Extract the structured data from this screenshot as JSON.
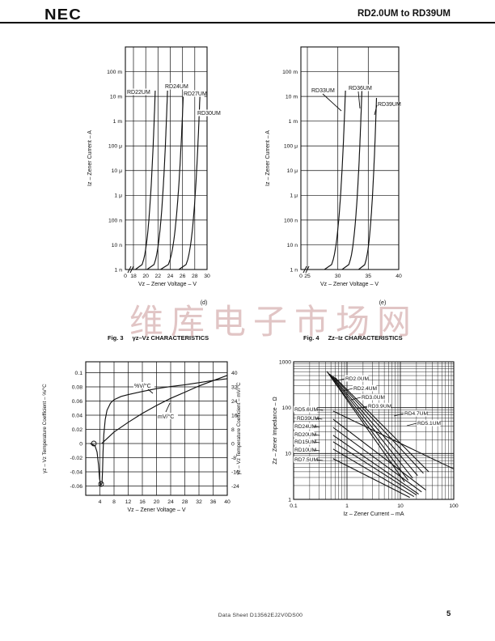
{
  "header": {
    "logo": "NEC",
    "title": "RD2.0UM to RD39UM"
  },
  "watermark": "维库电子市场网",
  "chart_data": {
    "fig_d": {
      "type": "line",
      "sublabel": "(d)",
      "xlabel": "Vz – Zener Voltage – V",
      "ylabel": "Iz – Zener Current – A",
      "xticks": [
        "0",
        "18",
        "20",
        "22",
        "24",
        "26",
        "28",
        "30"
      ],
      "yticks": [
        "100 m",
        "10 m",
        "1 m",
        "100 μ",
        "10 μ",
        "1 μ",
        "100 n",
        "10 n",
        "1 n"
      ],
      "xlim_volts": [
        18,
        30
      ],
      "ylog_range_amps": [
        "1 n",
        "1"
      ],
      "curves": [
        {
          "name": "RD22UM",
          "v_at_1nA": 18.3,
          "v_at_10mA": 21.55
        },
        {
          "name": "RD24UM",
          "v_at_1nA": 20.2,
          "v_at_10mA": 23.55
        },
        {
          "name": "RD27UM",
          "v_at_1nA": 22.4,
          "v_at_10mA": 26.15
        },
        {
          "name": "RD30UM",
          "v_at_1nA": 25.4,
          "v_at_10mA": 28.85
        }
      ]
    },
    "fig_e": {
      "type": "line",
      "sublabel": "(e)",
      "xlabel": "Vz – Zener Voltage – V",
      "ylabel": "Iz – Zener Current – A",
      "xticks": [
        "0",
        "25",
        "30",
        "35",
        "40"
      ],
      "yticks": [
        "100 m",
        "10 m",
        "1 m",
        "100 μ",
        "10 μ",
        "1 μ",
        "100 n",
        "10 n",
        "1 n"
      ],
      "xlim_volts": [
        25,
        40
      ],
      "ylog_range_amps": [
        "1 n",
        "1"
      ],
      "curves": [
        {
          "name": "RD33UM",
          "v_at_1nA": 27.8,
          "v_at_10mA": 31.25
        },
        {
          "name": "RD36UM",
          "v_at_1nA": 30.7,
          "v_at_10mA": 33.95
        },
        {
          "name": "RD39UM",
          "v_at_1nA": 33.4,
          "v_at_10mA": 36.35
        }
      ]
    },
    "fig3": {
      "caption_no": "Fig. 3",
      "caption_title": "γz–Vz CHARACTERISTICS",
      "type": "line",
      "xlabel": "Vz – Zener Voltage – V",
      "ylabel_left": "γz – Vz Temperature Coefficient – %/°C",
      "ylabel_right": "γz – Vz Temperature Coefficient – mV/°C",
      "xticks": [
        4,
        8,
        12,
        16,
        20,
        24,
        28,
        32,
        36,
        40
      ],
      "yticks_left": [
        0.1,
        0.08,
        0.06,
        0.04,
        0.02,
        0,
        -0.02,
        -0.04,
        -0.06
      ],
      "yticks_right": [
        40,
        32,
        24,
        16,
        8,
        0,
        -8,
        -16,
        -24
      ],
      "series": [
        {
          "name": "%V/°C",
          "axis": "left",
          "points": [
            [
              1.2,
              0
            ],
            [
              2.6,
              -0.003
            ],
            [
              3.2,
              -0.012
            ],
            [
              3.6,
              -0.03
            ],
            [
              3.9,
              -0.05
            ],
            [
              4.3,
              -0.059
            ],
            [
              4.6,
              -0.056
            ],
            [
              4.75,
              -0.038
            ],
            [
              4.9,
              -0.012
            ],
            [
              5.1,
              0.012
            ],
            [
              5.5,
              0.034
            ],
            [
              6,
              0.047
            ],
            [
              7,
              0.057
            ],
            [
              8,
              0.062
            ],
            [
              10,
              0.0665
            ],
            [
              12,
              0.069
            ],
            [
              16,
              0.0735
            ],
            [
              20,
              0.0775
            ],
            [
              24,
              0.0805
            ],
            [
              28,
              0.083
            ],
            [
              32,
              0.086
            ],
            [
              36,
              0.089
            ],
            [
              40,
              0.0915
            ]
          ]
        },
        {
          "name": "mV/°C",
          "axis": "right",
          "points": [
            [
              4.5,
              0
            ],
            [
              8,
              6.5
            ],
            [
              12,
              12
            ],
            [
              16,
              17
            ],
            [
              20,
              21.5
            ],
            [
              24,
              25.5
            ],
            [
              28,
              29
            ],
            [
              32,
              32.5
            ],
            [
              36,
              35.5
            ],
            [
              40,
              38.5
            ]
          ]
        }
      ]
    },
    "fig4": {
      "caption_no": "Fig. 4",
      "caption_title": "Zz–Iz CHARACTERISTICS",
      "type": "line",
      "xscale": "log",
      "yscale": "log",
      "xlabel": "Iz – Zener Current – mA",
      "ylabel": "Zz – Zener Impedance – Ω",
      "xticks": [
        0.1,
        1,
        10,
        100
      ],
      "yticks": [
        1,
        10,
        100,
        1000
      ],
      "series": [
        {
          "name": "RD2.0UM",
          "points": [
            [
              0.42,
              620
            ],
            [
              12,
              2.4
            ]
          ]
        },
        {
          "name": "RD2.4UM",
          "points": [
            [
              0.44,
              580
            ],
            [
              14,
              2.6
            ]
          ]
        },
        {
          "name": "RD3.0UM",
          "points": [
            [
              0.47,
              545
            ],
            [
              17,
              2.9
            ]
          ]
        },
        {
          "name": "RD3.9UM",
          "points": [
            [
              0.5,
              515
            ],
            [
              21,
              3.3
            ]
          ]
        },
        {
          "name": "RD4.7UM",
          "points": [
            [
              0.55,
              480
            ],
            [
              27,
              3.7
            ]
          ]
        },
        {
          "name": "RD5.1UM",
          "points": [
            [
              0.6,
              450
            ],
            [
              34,
              4.0
            ]
          ]
        },
        {
          "name": "RD5.6UM",
          "points": [
            [
              0.55,
              84
            ],
            [
              100,
              4.6
            ]
          ]
        },
        {
          "name": "RD39UM",
          "points": [
            [
              0.55,
              56
            ],
            [
              30,
              1.6
            ]
          ]
        },
        {
          "name": "RD24UM",
          "points": [
            [
              0.55,
              37
            ],
            [
              25,
              1.45
            ]
          ]
        },
        {
          "name": "RD20UM",
          "points": [
            [
              0.55,
              25
            ],
            [
              22,
              1.3
            ]
          ]
        },
        {
          "name": "RD15UM",
          "points": [
            [
              0.55,
              18
            ],
            [
              20,
              1.25
            ]
          ]
        },
        {
          "name": "RD10UM",
          "points": [
            [
              0.55,
              12.5
            ],
            [
              18,
              1.15
            ]
          ]
        },
        {
          "name": "RD7.5UM",
          "points": [
            [
              0.55,
              7.7
            ],
            [
              15,
              1.1
            ]
          ]
        }
      ]
    }
  },
  "footer": {
    "doc_id": "Data Sheet  D13562EJ2V0DS00",
    "page": "5"
  }
}
